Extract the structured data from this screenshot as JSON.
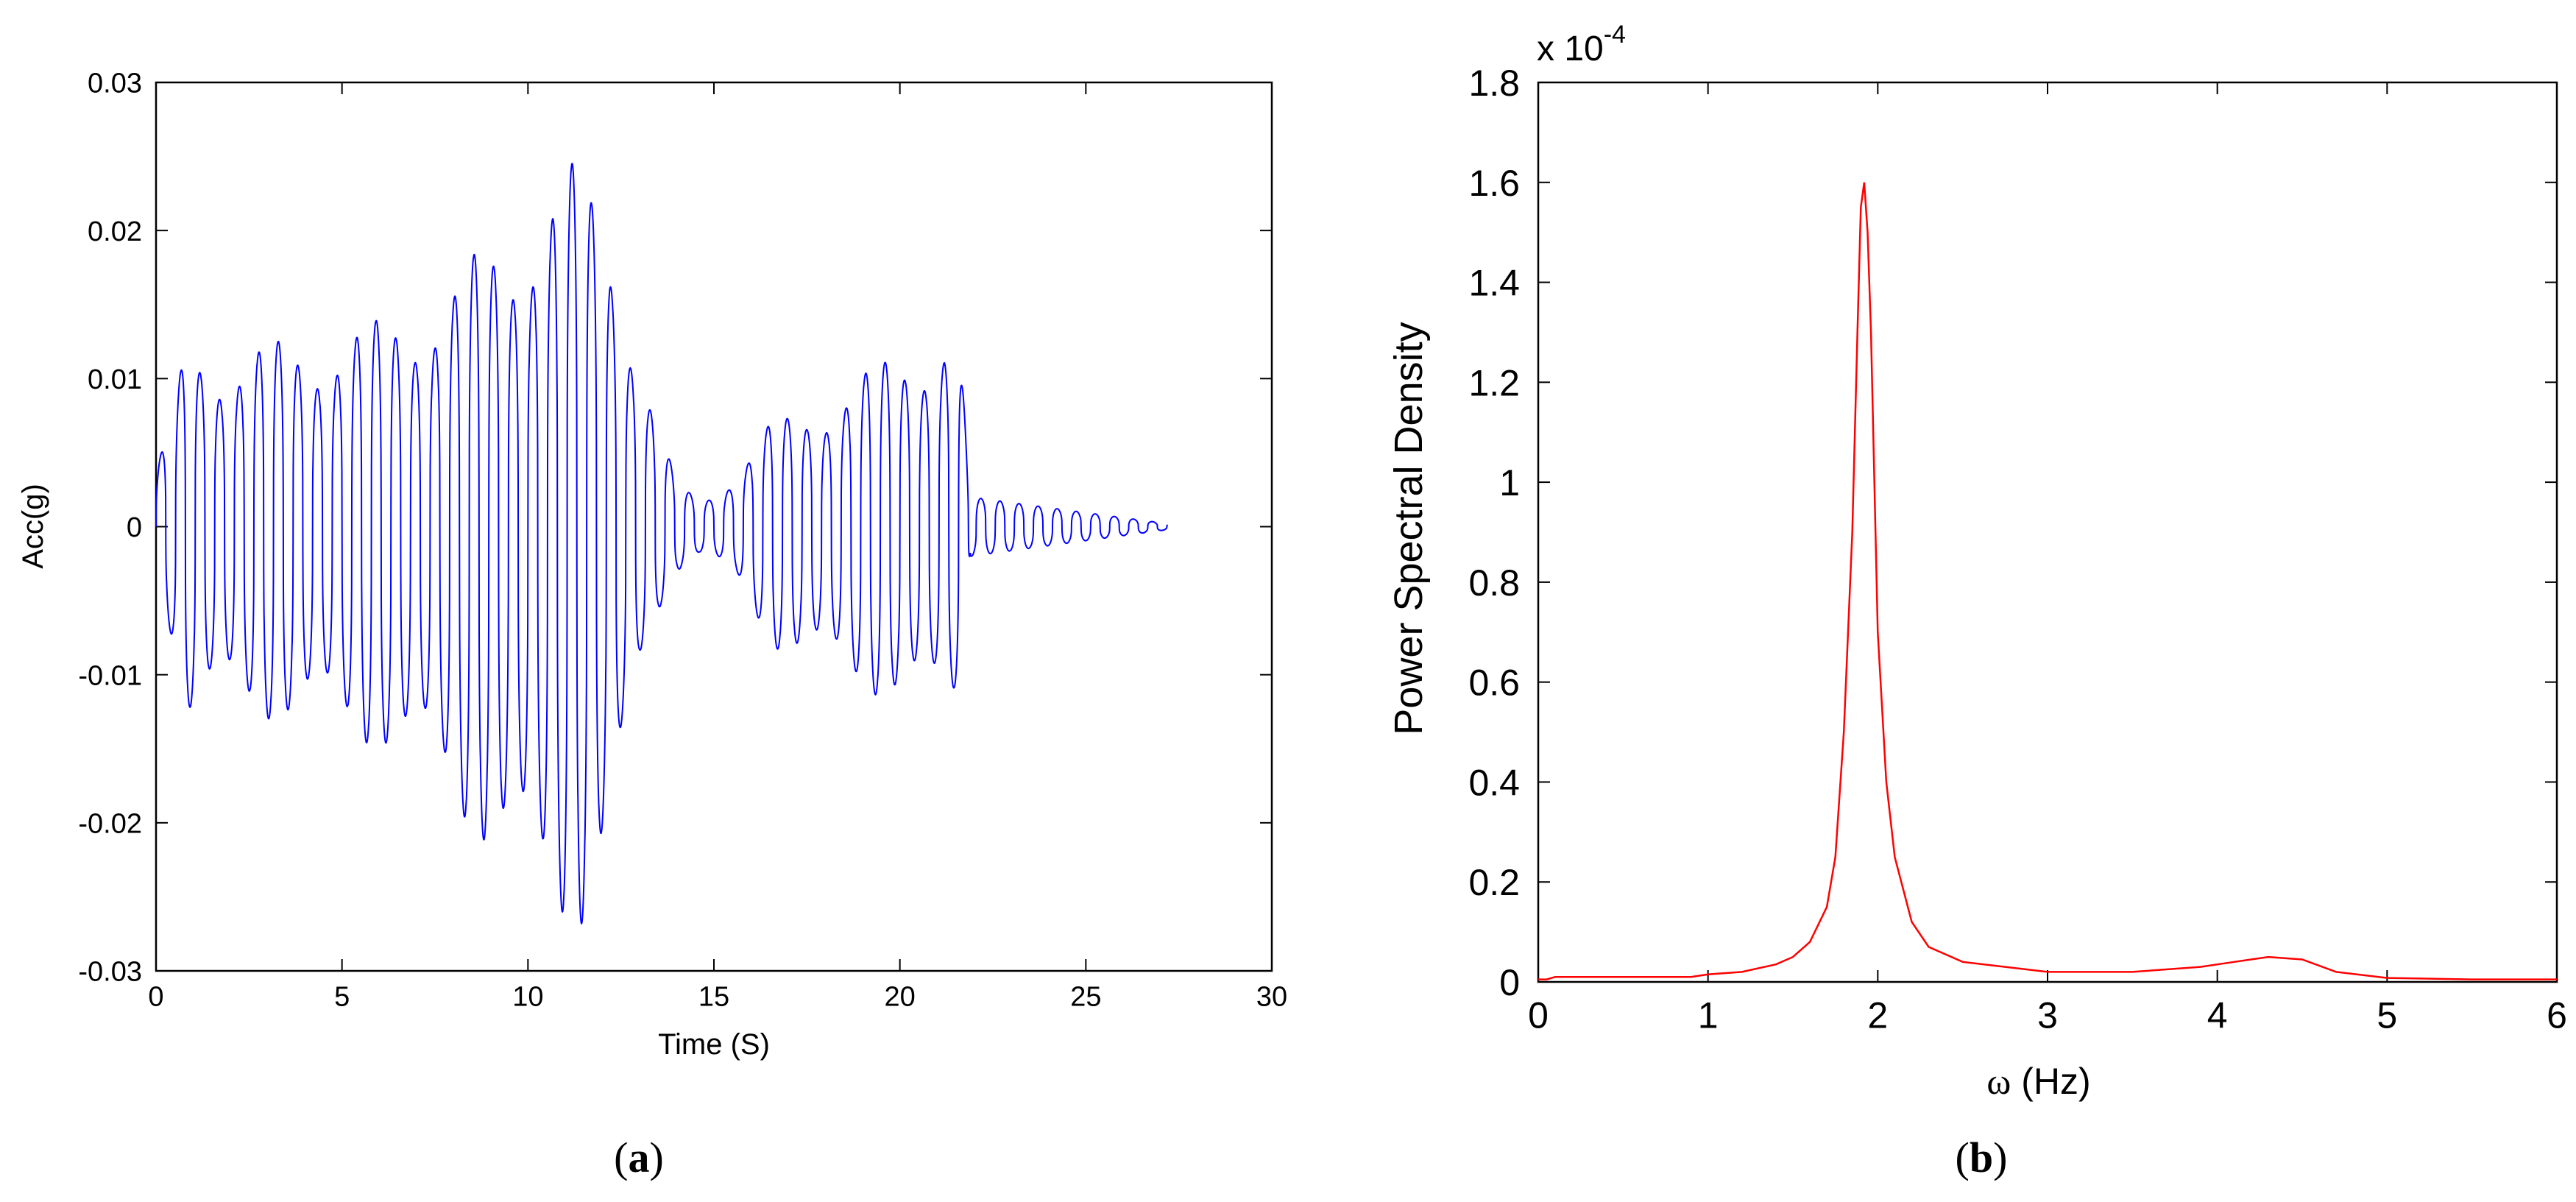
{
  "chart_data": [
    {
      "type": "line",
      "panel_label": "a",
      "xlabel": "Time (S)",
      "ylabel": "Acc(g)",
      "xlim": [
        0,
        30
      ],
      "ylim": [
        -0.03,
        0.03
      ],
      "x_ticks": [
        0,
        5,
        10,
        15,
        20,
        25,
        30
      ],
      "y_ticks": [
        -0.03,
        -0.02,
        -0.01,
        0,
        0.01,
        0.02,
        0.03
      ],
      "x_tick_labels": [
        "0",
        "5",
        "10",
        "15",
        "20",
        "25",
        "30"
      ],
      "y_tick_labels": [
        "-0.03",
        "-0.02",
        "-0.01",
        "0",
        "0.01",
        "0.02",
        "0.03"
      ],
      "grid": false,
      "line_color": "#0000ff",
      "envelope": {
        "description_units": "time in s, amplitude in g",
        "time": [
          0,
          0.5,
          0.8,
          2,
          4,
          6,
          8,
          10,
          11.4,
          12.2,
          13.0,
          13.5,
          14.0,
          14.6,
          15.0,
          15.6,
          16.5,
          18,
          20,
          21.2,
          21.6,
          21.9,
          27.2
        ],
        "upper": [
          0.004,
          0.008,
          0.013,
          0.012,
          0.013,
          0.014,
          0.017,
          0.022,
          0.025,
          0.022,
          0.012,
          0.007,
          0.003,
          0.002,
          0.0025,
          0.004,
          0.007,
          0.009,
          0.012,
          0.014,
          0.013,
          0.002,
          0.0002
        ],
        "lower": [
          -0.004,
          -0.008,
          -0.0135,
          -0.0125,
          -0.0135,
          -0.015,
          -0.019,
          -0.026,
          -0.0275,
          -0.024,
          -0.011,
          -0.006,
          -0.003,
          -0.002,
          -0.0025,
          -0.004,
          -0.008,
          -0.01,
          -0.012,
          -0.013,
          -0.012,
          -0.002,
          -0.0002
        ]
      }
    },
    {
      "type": "line",
      "panel_label": "b",
      "xlabel_symbol": "ω",
      "xlabel": " (Hz)",
      "ylabel": "Power Spectral Density",
      "axis_multiplier": "x 10",
      "axis_multiplier_exp": "-4",
      "xlim": [
        0,
        6
      ],
      "ylim": [
        0,
        1.8
      ],
      "x_ticks": [
        0,
        1,
        2,
        3,
        4,
        5,
        6
      ],
      "y_ticks": [
        0,
        0.2,
        0.4,
        0.6,
        0.8,
        1,
        1.2,
        1.4,
        1.6,
        1.8
      ],
      "x_tick_labels": [
        "0",
        "1",
        "2",
        "3",
        "4",
        "5",
        "6"
      ],
      "y_tick_labels": [
        "0",
        "0.2",
        "0.4",
        "0.6",
        "0.8",
        "1",
        "1.2",
        "1.4",
        "1.6",
        "1.8"
      ],
      "grid": false,
      "line_color": "#ff0000",
      "x": [
        0,
        0.05,
        0.1,
        0.9,
        1.0,
        1.2,
        1.4,
        1.5,
        1.6,
        1.7,
        1.75,
        1.8,
        1.85,
        1.88,
        1.9,
        1.92,
        1.94,
        1.96,
        2.0,
        2.05,
        2.1,
        2.2,
        2.3,
        2.5,
        3.0,
        3.5,
        3.9,
        4.1,
        4.3,
        4.5,
        4.7,
        5.0,
        5.5,
        6.0
      ],
      "values": [
        0.005,
        0.005,
        0.01,
        0.01,
        0.015,
        0.02,
        0.035,
        0.05,
        0.08,
        0.15,
        0.25,
        0.5,
        0.9,
        1.3,
        1.55,
        1.6,
        1.5,
        1.3,
        0.7,
        0.4,
        0.25,
        0.12,
        0.07,
        0.04,
        0.02,
        0.02,
        0.03,
        0.04,
        0.05,
        0.045,
        0.02,
        0.008,
        0.005,
        0.005
      ]
    }
  ]
}
